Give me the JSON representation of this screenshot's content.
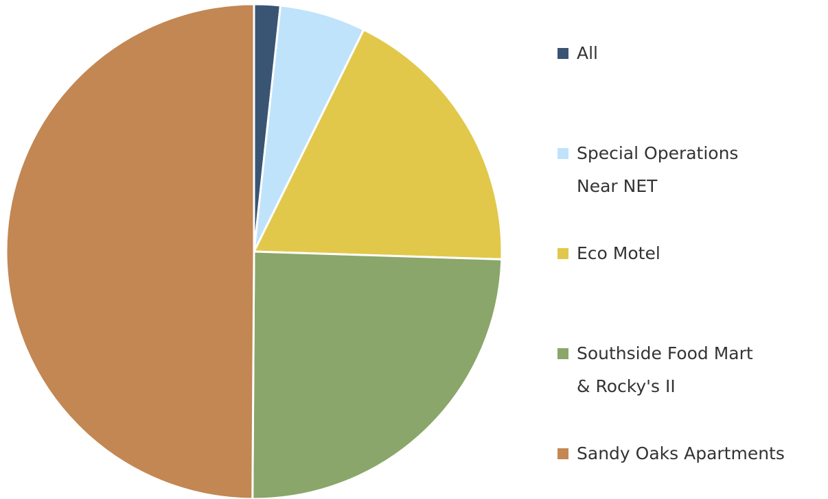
{
  "chart_data": {
    "type": "pie",
    "categories": [
      "All",
      "Special Operations Near NET",
      "Eco Motel",
      "Southside Food Mart & Rocky's II",
      "Sandy Oaks Apartments"
    ],
    "values": [
      1.7,
      5.6,
      18.2,
      24.6,
      49.9
    ],
    "colors": [
      "#3a5573",
      "#bfe3fb",
      "#e1c84b",
      "#8aa66a",
      "#c38753"
    ],
    "legend": "right"
  }
}
